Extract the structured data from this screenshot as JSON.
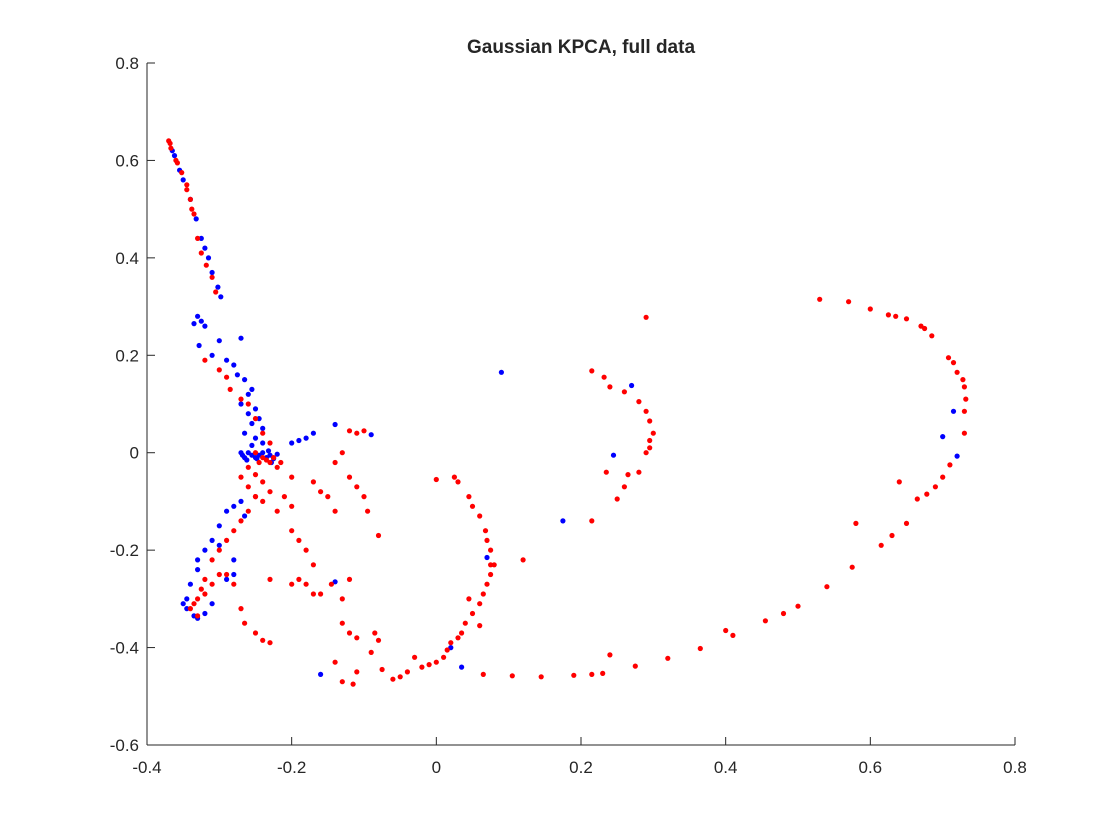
{
  "chart_data": {
    "type": "scatter",
    "title": "Gaussian KPCA, full data",
    "xlabel": "",
    "ylabel": "",
    "xlim": [
      -0.4,
      0.8
    ],
    "ylim": [
      -0.6,
      0.8
    ],
    "xticks": [
      -0.4,
      -0.2,
      0,
      0.2,
      0.4,
      0.6,
      0.8
    ],
    "xtick_labels": [
      "-0.4",
      "-0.2",
      "0",
      "0.2",
      "0.4",
      "0.6",
      "0.8"
    ],
    "yticks": [
      -0.6,
      -0.4,
      -0.2,
      0,
      0.2,
      0.4,
      0.6,
      0.8
    ],
    "ytick_labels": [
      "-0.6",
      "-0.4",
      "-0.2",
      "0",
      "0.2",
      "0.4",
      "0.6",
      "0.8"
    ],
    "grid": false,
    "box": false,
    "series": [
      {
        "color": "#0000ff",
        "points": [
          [
            -0.365,
            0.62
          ],
          [
            -0.362,
            0.61
          ],
          [
            -0.355,
            0.58
          ],
          [
            -0.35,
            0.56
          ],
          [
            -0.34,
            0.52
          ],
          [
            -0.332,
            0.48
          ],
          [
            -0.325,
            0.44
          ],
          [
            -0.32,
            0.42
          ],
          [
            -0.315,
            0.4
          ],
          [
            -0.31,
            0.37
          ],
          [
            -0.302,
            0.34
          ],
          [
            -0.298,
            0.32
          ],
          [
            -0.33,
            0.28
          ],
          [
            -0.325,
            0.27
          ],
          [
            -0.32,
            0.26
          ],
          [
            -0.335,
            0.265
          ],
          [
            -0.328,
            0.22
          ],
          [
            -0.3,
            0.23
          ],
          [
            -0.27,
            0.235
          ],
          [
            -0.31,
            0.2
          ],
          [
            -0.29,
            0.19
          ],
          [
            -0.28,
            0.18
          ],
          [
            -0.275,
            0.16
          ],
          [
            -0.265,
            0.15
          ],
          [
            -0.255,
            0.13
          ],
          [
            -0.26,
            0.12
          ],
          [
            -0.27,
            0.1
          ],
          [
            -0.25,
            0.09
          ],
          [
            -0.26,
            0.08
          ],
          [
            -0.245,
            0.07
          ],
          [
            -0.255,
            0.06
          ],
          [
            -0.24,
            0.05
          ],
          [
            -0.265,
            0.04
          ],
          [
            -0.25,
            0.03
          ],
          [
            -0.24,
            0.02
          ],
          [
            -0.255,
            0.015
          ],
          [
            -0.27,
            0.0
          ],
          [
            -0.268,
            -0.005
          ],
          [
            -0.265,
            -0.01
          ],
          [
            -0.26,
            0.0
          ],
          [
            -0.255,
            -0.005
          ],
          [
            -0.25,
            -0.01
          ],
          [
            -0.245,
            -0.005
          ],
          [
            -0.24,
            0.0
          ],
          [
            -0.235,
            -0.01
          ],
          [
            -0.23,
            -0.005
          ],
          [
            -0.225,
            -0.012
          ],
          [
            -0.22,
            -0.003
          ],
          [
            -0.262,
            -0.015
          ],
          [
            -0.248,
            -0.012
          ],
          [
            -0.232,
            0.004
          ],
          [
            -0.228,
            -0.02
          ],
          [
            -0.2,
            0.02
          ],
          [
            -0.19,
            0.025
          ],
          [
            -0.18,
            0.03
          ],
          [
            -0.17,
            0.04
          ],
          [
            -0.14,
            0.058
          ],
          [
            -0.09,
            0.037
          ],
          [
            -0.27,
            -0.1
          ],
          [
            -0.28,
            -0.11
          ],
          [
            -0.29,
            -0.12
          ],
          [
            -0.265,
            -0.13
          ],
          [
            -0.3,
            -0.15
          ],
          [
            -0.31,
            -0.18
          ],
          [
            -0.3,
            -0.19
          ],
          [
            -0.32,
            -0.2
          ],
          [
            -0.33,
            -0.22
          ],
          [
            -0.28,
            -0.22
          ],
          [
            -0.33,
            -0.24
          ],
          [
            -0.34,
            -0.27
          ],
          [
            -0.345,
            -0.3
          ],
          [
            -0.35,
            -0.31
          ],
          [
            -0.345,
            -0.32
          ],
          [
            -0.335,
            -0.335
          ],
          [
            -0.33,
            -0.34
          ],
          [
            -0.32,
            -0.33
          ],
          [
            -0.31,
            -0.31
          ],
          [
            -0.29,
            -0.26
          ],
          [
            -0.28,
            -0.25
          ],
          [
            -0.14,
            -0.265
          ],
          [
            -0.16,
            -0.455
          ],
          [
            0.09,
            0.165
          ],
          [
            0.27,
            0.138
          ],
          [
            0.245,
            -0.005
          ],
          [
            0.175,
            -0.14
          ],
          [
            0.07,
            -0.215
          ],
          [
            0.02,
            -0.4
          ],
          [
            0.035,
            -0.44
          ],
          [
            0.715,
            0.085
          ],
          [
            0.7,
            0.033
          ],
          [
            0.72,
            -0.007
          ]
        ]
      },
      {
        "color": "#ff0000",
        "points": [
          [
            -0.37,
            0.64
          ],
          [
            -0.368,
            0.635
          ],
          [
            -0.367,
            0.625
          ],
          [
            -0.36,
            0.6
          ],
          [
            -0.358,
            0.595
          ],
          [
            -0.352,
            0.575
          ],
          [
            -0.345,
            0.55
          ],
          [
            -0.345,
            0.54
          ],
          [
            -0.34,
            0.52
          ],
          [
            -0.338,
            0.5
          ],
          [
            -0.335,
            0.49
          ],
          [
            -0.33,
            0.44
          ],
          [
            -0.325,
            0.41
          ],
          [
            -0.318,
            0.385
          ],
          [
            -0.31,
            0.36
          ],
          [
            -0.305,
            0.33
          ],
          [
            -0.32,
            0.19
          ],
          [
            -0.3,
            0.17
          ],
          [
            -0.29,
            0.155
          ],
          [
            -0.285,
            0.13
          ],
          [
            -0.27,
            0.11
          ],
          [
            -0.26,
            0.1
          ],
          [
            -0.25,
            0.07
          ],
          [
            -0.24,
            0.04
          ],
          [
            -0.23,
            0.02
          ],
          [
            -0.25,
            0.0
          ],
          [
            -0.24,
            -0.01
          ],
          [
            -0.23,
            -0.02
          ],
          [
            -0.22,
            -0.03
          ],
          [
            -0.26,
            -0.03
          ],
          [
            -0.25,
            -0.045
          ],
          [
            -0.24,
            -0.06
          ],
          [
            -0.23,
            -0.08
          ],
          [
            -0.27,
            -0.05
          ],
          [
            -0.26,
            -0.07
          ],
          [
            -0.25,
            -0.09
          ],
          [
            -0.225,
            -0.01
          ],
          [
            -0.215,
            -0.02
          ],
          [
            -0.235,
            -0.015
          ],
          [
            -0.245,
            -0.02
          ],
          [
            -0.2,
            -0.05
          ],
          [
            -0.21,
            -0.09
          ],
          [
            -0.2,
            -0.11
          ],
          [
            -0.22,
            -0.12
          ],
          [
            -0.24,
            -0.1
          ],
          [
            -0.25,
            -0.09
          ],
          [
            -0.26,
            -0.12
          ],
          [
            -0.27,
            -0.14
          ],
          [
            -0.28,
            -0.16
          ],
          [
            -0.29,
            -0.18
          ],
          [
            -0.3,
            -0.2
          ],
          [
            -0.31,
            -0.22
          ],
          [
            -0.32,
            -0.26
          ],
          [
            -0.325,
            -0.28
          ],
          [
            -0.33,
            -0.3
          ],
          [
            -0.335,
            -0.31
          ],
          [
            -0.34,
            -0.32
          ],
          [
            -0.33,
            -0.335
          ],
          [
            -0.32,
            -0.29
          ],
          [
            -0.31,
            -0.27
          ],
          [
            -0.3,
            -0.25
          ],
          [
            -0.29,
            -0.25
          ],
          [
            -0.28,
            -0.27
          ],
          [
            -0.27,
            -0.32
          ],
          [
            -0.265,
            -0.35
          ],
          [
            -0.25,
            -0.37
          ],
          [
            -0.24,
            -0.385
          ],
          [
            -0.23,
            -0.39
          ],
          [
            -0.23,
            -0.26
          ],
          [
            -0.2,
            -0.27
          ],
          [
            -0.19,
            -0.26
          ],
          [
            -0.18,
            -0.27
          ],
          [
            -0.17,
            -0.29
          ],
          [
            -0.16,
            -0.29
          ],
          [
            -0.17,
            -0.23
          ],
          [
            -0.18,
            -0.2
          ],
          [
            -0.19,
            -0.18
          ],
          [
            -0.2,
            -0.16
          ],
          [
            -0.17,
            -0.06
          ],
          [
            -0.16,
            -0.08
          ],
          [
            -0.15,
            -0.09
          ],
          [
            -0.14,
            -0.12
          ],
          [
            -0.145,
            -0.27
          ],
          [
            -0.13,
            -0.3
          ],
          [
            -0.12,
            -0.26
          ],
          [
            -0.13,
            0.0
          ],
          [
            -0.14,
            -0.02
          ],
          [
            -0.12,
            -0.05
          ],
          [
            -0.11,
            -0.07
          ],
          [
            -0.1,
            -0.09
          ],
          [
            -0.095,
            -0.12
          ],
          [
            -0.08,
            -0.17
          ],
          [
            -0.12,
            0.045
          ],
          [
            -0.11,
            0.04
          ],
          [
            -0.1,
            0.045
          ],
          [
            -0.13,
            -0.35
          ],
          [
            -0.12,
            -0.37
          ],
          [
            -0.11,
            -0.38
          ],
          [
            -0.09,
            -0.41
          ],
          [
            -0.085,
            -0.37
          ],
          [
            -0.08,
            -0.385
          ],
          [
            -0.14,
            -0.43
          ],
          [
            -0.13,
            -0.47
          ],
          [
            -0.115,
            -0.475
          ],
          [
            -0.11,
            -0.45
          ],
          [
            -0.075,
            -0.445
          ],
          [
            -0.06,
            -0.465
          ],
          [
            -0.05,
            -0.46
          ],
          [
            -0.04,
            -0.45
          ],
          [
            -0.03,
            -0.42
          ],
          [
            -0.02,
            -0.44
          ],
          [
            -0.01,
            -0.435
          ],
          [
            0.0,
            -0.43
          ],
          [
            0.01,
            -0.42
          ],
          [
            0.015,
            -0.405
          ],
          [
            0.02,
            -0.39
          ],
          [
            0.03,
            -0.38
          ],
          [
            0.035,
            -0.37
          ],
          [
            0.04,
            -0.35
          ],
          [
            0.05,
            -0.33
          ],
          [
            0.06,
            -0.31
          ],
          [
            0.065,
            -0.29
          ],
          [
            0.07,
            -0.27
          ],
          [
            0.075,
            -0.25
          ],
          [
            0.075,
            -0.23
          ],
          [
            0.075,
            -0.2
          ],
          [
            0.07,
            -0.18
          ],
          [
            0.068,
            -0.16
          ],
          [
            0.06,
            -0.13
          ],
          [
            0.05,
            -0.11
          ],
          [
            0.045,
            -0.09
          ],
          [
            0.03,
            -0.06
          ],
          [
            0.0,
            -0.055
          ],
          [
            0.025,
            -0.05
          ],
          [
            0.08,
            -0.23
          ],
          [
            0.12,
            -0.22
          ],
          [
            0.045,
            -0.3
          ],
          [
            0.06,
            -0.355
          ],
          [
            0.065,
            -0.455
          ],
          [
            0.105,
            -0.458
          ],
          [
            0.145,
            -0.46
          ],
          [
            0.19,
            -0.457
          ],
          [
            0.215,
            -0.455
          ],
          [
            0.23,
            -0.453
          ],
          [
            0.24,
            -0.415
          ],
          [
            0.275,
            -0.438
          ],
          [
            0.32,
            -0.422
          ],
          [
            0.365,
            -0.402
          ],
          [
            0.4,
            -0.365
          ],
          [
            0.41,
            -0.375
          ],
          [
            0.455,
            -0.345
          ],
          [
            0.48,
            -0.33
          ],
          [
            0.5,
            -0.315
          ],
          [
            0.54,
            -0.275
          ],
          [
            0.575,
            -0.235
          ],
          [
            0.58,
            -0.145
          ],
          [
            0.615,
            -0.19
          ],
          [
            0.63,
            -0.17
          ],
          [
            0.65,
            -0.145
          ],
          [
            0.665,
            -0.095
          ],
          [
            0.678,
            -0.085
          ],
          [
            0.69,
            -0.07
          ],
          [
            0.7,
            -0.05
          ],
          [
            0.71,
            -0.025
          ],
          [
            0.73,
            0.04
          ],
          [
            0.73,
            0.085
          ],
          [
            0.732,
            0.11
          ],
          [
            0.73,
            0.135
          ],
          [
            0.728,
            0.15
          ],
          [
            0.72,
            0.165
          ],
          [
            0.715,
            0.185
          ],
          [
            0.708,
            0.195
          ],
          [
            0.685,
            0.24
          ],
          [
            0.675,
            0.255
          ],
          [
            0.67,
            0.26
          ],
          [
            0.65,
            0.275
          ],
          [
            0.635,
            0.28
          ],
          [
            0.625,
            0.283
          ],
          [
            0.6,
            0.295
          ],
          [
            0.57,
            0.31
          ],
          [
            0.53,
            0.315
          ],
          [
            0.64,
            -0.06
          ],
          [
            0.29,
            0.278
          ],
          [
            0.215,
            0.168
          ],
          [
            0.232,
            0.155
          ],
          [
            0.24,
            0.135
          ],
          [
            0.26,
            0.125
          ],
          [
            0.28,
            0.105
          ],
          [
            0.29,
            0.085
          ],
          [
            0.295,
            0.065
          ],
          [
            0.3,
            0.04
          ],
          [
            0.295,
            0.025
          ],
          [
            0.295,
            0.01
          ],
          [
            0.29,
            0.0
          ],
          [
            0.28,
            -0.04
          ],
          [
            0.265,
            -0.045
          ],
          [
            0.26,
            -0.07
          ],
          [
            0.25,
            -0.095
          ],
          [
            0.235,
            -0.04
          ],
          [
            0.215,
            -0.14
          ]
        ]
      }
    ]
  }
}
